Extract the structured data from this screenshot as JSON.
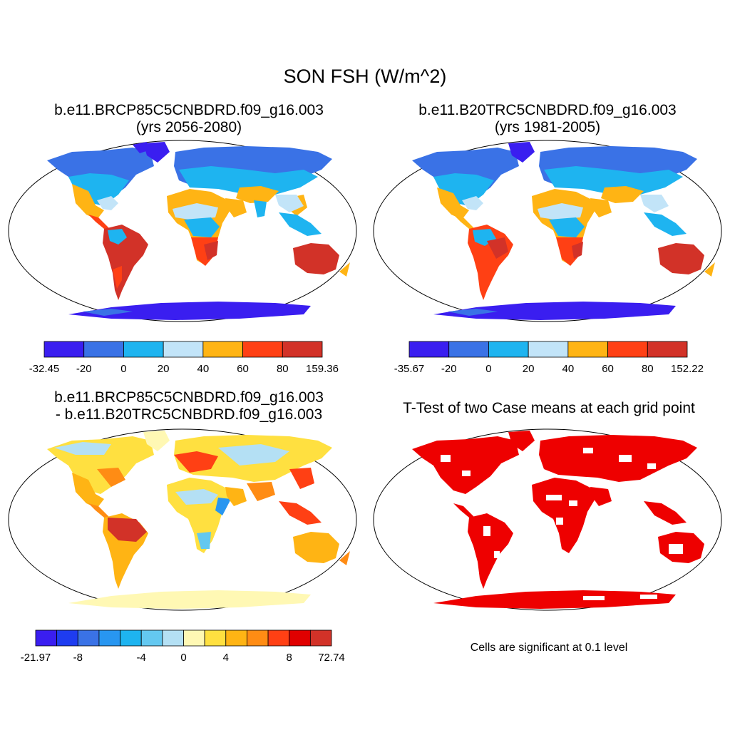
{
  "title": "SON FSH (W/m^2)",
  "panels": {
    "p1": {
      "line1": "b.e11.BRCP85C5CNBDRD.f09_g16.003",
      "line2": "(yrs 2056-2080)"
    },
    "p2": {
      "line1": "b.e11.B20TRC5CNBDRD.f09_g16.003",
      "line2": "(yrs 1981-2005)"
    },
    "p3": {
      "line1": "b.e11.BRCP85C5CNBDRD.f09_g16.003",
      "line2": "- b.e11.B20TRC5CNBDRD.f09_g16.003"
    },
    "p4": {
      "line1": "T-Test of two Case means at each grid point"
    }
  },
  "colorbars": {
    "cb1": {
      "labels": [
        "-32.45",
        "-20",
        "0",
        "20",
        "40",
        "60",
        "80",
        "159.36"
      ],
      "colors": [
        "#3a1ef0",
        "#3a72e6",
        "#1eb4f0",
        "#c2e4f8",
        "#ffb414",
        "#ff4014",
        "#d23228"
      ]
    },
    "cb2": {
      "labels": [
        "-35.67",
        "-20",
        "0",
        "20",
        "40",
        "60",
        "80",
        "152.22"
      ],
      "colors": [
        "#3a1ef0",
        "#3a72e6",
        "#1eb4f0",
        "#c2e4f8",
        "#ffb414",
        "#ff4014",
        "#d23228"
      ]
    },
    "cb3": {
      "labels": [
        "-21.97",
        "-8",
        "-4",
        "0",
        "4",
        "8",
        "72.74"
      ],
      "colors": [
        "#3a1ef0",
        "#1e3cf0",
        "#3a72e6",
        "#2896f0",
        "#1eb4f0",
        "#64c8f0",
        "#b4e0f4",
        "#fff8b4",
        "#ffe040",
        "#ffb414",
        "#ff8c14",
        "#ff4014",
        "#e00000",
        "#d23228"
      ]
    }
  },
  "note": "Cells are significant at 0.1 level",
  "palette": {
    "ocean": "#ffffff",
    "coast": "#000000",
    "significant": "#ee0000"
  }
}
